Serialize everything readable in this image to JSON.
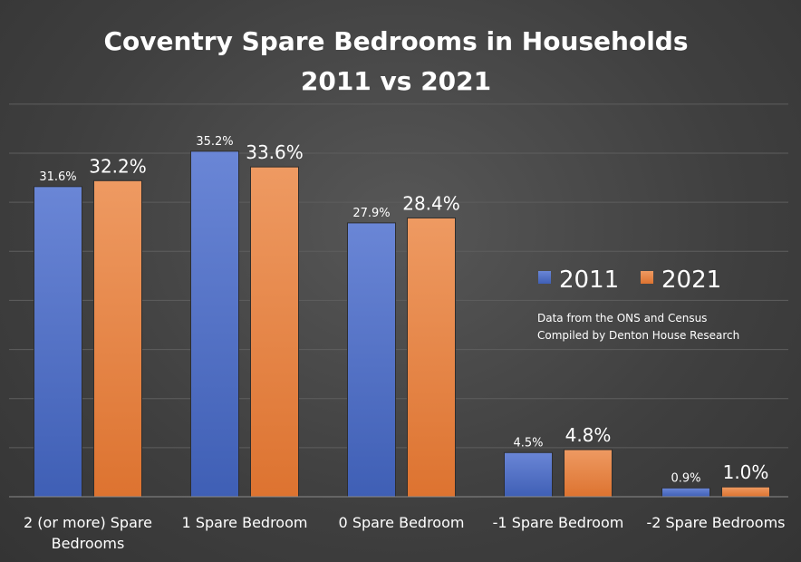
{
  "chart_data": {
    "type": "bar",
    "title": "Coventry Spare Bedrooms in Households",
    "subtitle": "2011 vs 2021",
    "categories": [
      [
        "2 (or more) Spare",
        "Bedrooms"
      ],
      [
        "1 Spare Bedroom"
      ],
      [
        "0 Spare Bedroom"
      ],
      [
        "-1 Spare Bedroom"
      ],
      [
        "-2 Spare Bedrooms"
      ]
    ],
    "series": [
      {
        "name": "2011",
        "color": "#4f6fc5",
        "values": [
          31.6,
          35.2,
          27.9,
          4.5,
          0.9
        ],
        "labels": [
          "31.6%",
          "35.2%",
          "27.9%",
          "4.5%",
          "0.9%"
        ]
      },
      {
        "name": "2021",
        "color": "#e8803e",
        "values": [
          32.2,
          33.6,
          28.4,
          4.8,
          1.0
        ],
        "labels": [
          "32.2%",
          "33.6%",
          "28.4%",
          "4.8%",
          "1.0%"
        ]
      }
    ],
    "ylim": [
      0,
      40
    ],
    "grid": true,
    "legend_position": "right",
    "annotation": [
      "Data from the ONS and Census",
      "Compiled by Denton House Research"
    ]
  }
}
